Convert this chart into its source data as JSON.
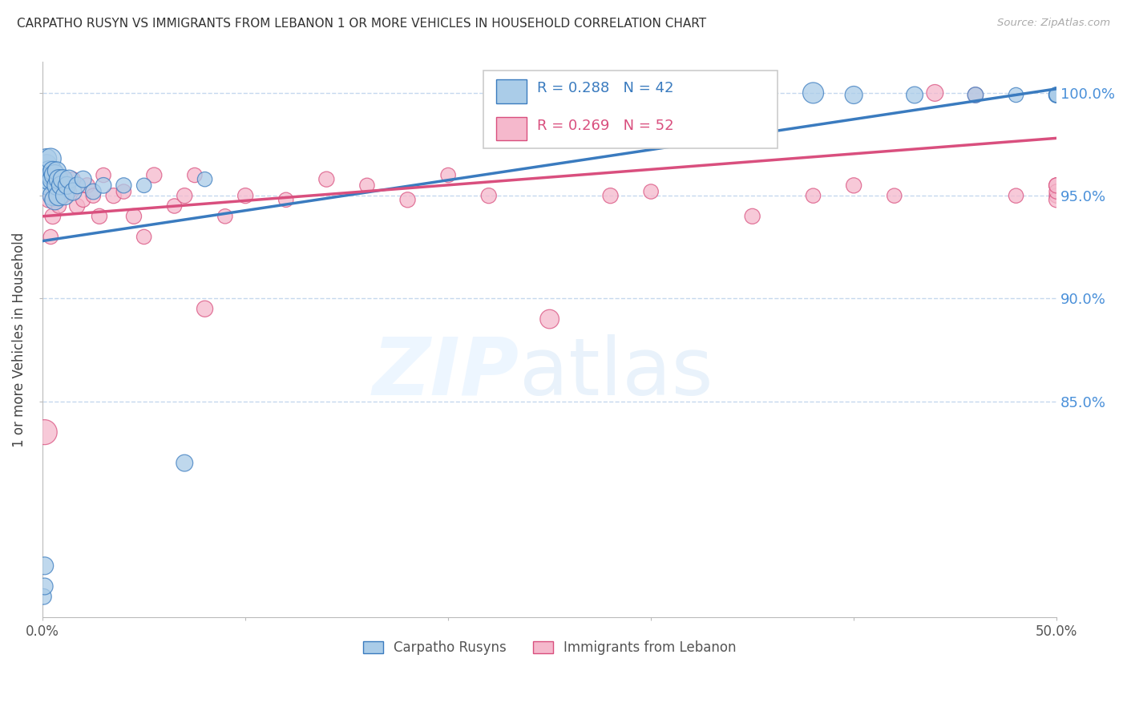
{
  "title": "CARPATHO RUSYN VS IMMIGRANTS FROM LEBANON 1 OR MORE VEHICLES IN HOUSEHOLD CORRELATION CHART",
  "source": "Source: ZipAtlas.com",
  "ylabel": "1 or more Vehicles in Household",
  "watermark_zip": "ZIP",
  "watermark_atlas": "atlas",
  "legend_blue_label": "Carpatho Rusyns",
  "legend_pink_label": "Immigrants from Lebanon",
  "legend_blue_r": "R = 0.288",
  "legend_blue_n": "N = 42",
  "legend_pink_r": "R = 0.269",
  "legend_pink_n": "N = 52",
  "blue_fill": "#aacce8",
  "pink_fill": "#f5b8cc",
  "trend_blue": "#3a7bbf",
  "trend_pink": "#d94f7e",
  "right_axis_color": "#4a90d9",
  "grid_color": "#c5d8ee",
  "xlim": [
    0.0,
    0.5
  ],
  "ylim": [
    0.745,
    1.015
  ],
  "yticks_right": [
    0.85,
    0.9,
    0.95,
    1.0
  ],
  "yticks_right_labels": [
    "85.0%",
    "90.0%",
    "95.0%",
    "100.0%"
  ],
  "xticks": [
    0.0,
    0.1,
    0.2,
    0.3,
    0.4,
    0.5
  ],
  "xtick_labels": [
    "0.0%",
    "",
    "",
    "",
    "",
    "50.0%"
  ],
  "blue_x": [
    0.0005,
    0.001,
    0.001,
    0.0015,
    0.002,
    0.002,
    0.0025,
    0.003,
    0.003,
    0.004,
    0.004,
    0.005,
    0.005,
    0.005,
    0.006,
    0.006,
    0.007,
    0.007,
    0.008,
    0.008,
    0.009,
    0.01,
    0.011,
    0.012,
    0.013,
    0.015,
    0.017,
    0.02,
    0.025,
    0.03,
    0.04,
    0.05,
    0.07,
    0.08,
    0.38,
    0.4,
    0.43,
    0.46,
    0.48,
    0.5,
    0.5,
    0.5
  ],
  "blue_y": [
    0.755,
    0.76,
    0.77,
    0.958,
    0.965,
    0.968,
    0.955,
    0.958,
    0.962,
    0.96,
    0.968,
    0.95,
    0.958,
    0.962,
    0.948,
    0.96,
    0.955,
    0.962,
    0.95,
    0.958,
    0.955,
    0.958,
    0.95,
    0.955,
    0.958,
    0.952,
    0.955,
    0.958,
    0.952,
    0.955,
    0.955,
    0.955,
    0.82,
    0.958,
    1.0,
    0.999,
    0.999,
    0.999,
    0.999,
    0.999,
    0.999,
    0.999
  ],
  "blue_size": [
    40,
    45,
    50,
    55,
    70,
    65,
    60,
    70,
    65,
    60,
    70,
    65,
    70,
    60,
    65,
    70,
    60,
    55,
    65,
    60,
    55,
    60,
    55,
    50,
    55,
    50,
    45,
    45,
    40,
    40,
    38,
    35,
    45,
    35,
    70,
    50,
    45,
    40,
    35,
    40,
    38,
    35
  ],
  "pink_x": [
    0.001,
    0.002,
    0.003,
    0.004,
    0.005,
    0.006,
    0.007,
    0.008,
    0.009,
    0.01,
    0.011,
    0.012,
    0.013,
    0.015,
    0.017,
    0.02,
    0.022,
    0.025,
    0.028,
    0.03,
    0.035,
    0.04,
    0.045,
    0.05,
    0.055,
    0.065,
    0.07,
    0.075,
    0.08,
    0.09,
    0.1,
    0.12,
    0.14,
    0.16,
    0.18,
    0.2,
    0.22,
    0.25,
    0.28,
    0.3,
    0.35,
    0.38,
    0.4,
    0.42,
    0.44,
    0.46,
    0.48,
    0.5,
    0.5,
    0.5,
    0.5,
    0.5
  ],
  "pink_y": [
    0.835,
    0.96,
    0.948,
    0.93,
    0.94,
    0.952,
    0.948,
    0.945,
    0.955,
    0.95,
    0.958,
    0.955,
    0.952,
    0.958,
    0.945,
    0.948,
    0.955,
    0.95,
    0.94,
    0.96,
    0.95,
    0.952,
    0.94,
    0.93,
    0.96,
    0.945,
    0.95,
    0.96,
    0.895,
    0.94,
    0.95,
    0.948,
    0.958,
    0.955,
    0.948,
    0.96,
    0.95,
    0.89,
    0.95,
    0.952,
    0.94,
    0.95,
    0.955,
    0.95,
    1.0,
    0.999,
    0.95,
    0.955,
    0.95,
    0.948,
    0.952,
    0.955
  ],
  "pink_size": [
    100,
    45,
    40,
    35,
    40,
    45,
    38,
    35,
    38,
    42,
    38,
    35,
    38,
    35,
    38,
    35,
    38,
    35,
    38,
    35,
    38,
    35,
    38,
    35,
    38,
    35,
    38,
    35,
    42,
    35,
    38,
    35,
    38,
    35,
    38,
    35,
    38,
    58,
    38,
    35,
    38,
    35,
    38,
    35,
    45,
    38,
    35,
    38,
    35,
    38,
    35,
    38
  ]
}
